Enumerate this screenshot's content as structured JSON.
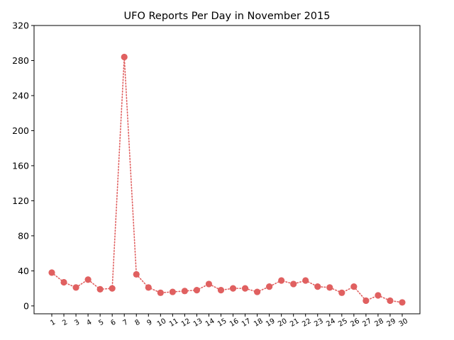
{
  "chart_data": {
    "type": "line",
    "title": "UFO Reports Per Day in November 2015",
    "xlabel": "",
    "ylabel": "",
    "categories": [
      "1",
      "2",
      "3",
      "4",
      "5",
      "6",
      "7",
      "8",
      "9",
      "10",
      "11",
      "12",
      "13",
      "14",
      "15",
      "16",
      "17",
      "18",
      "19",
      "20",
      "21",
      "22",
      "23",
      "24",
      "25",
      "26",
      "27",
      "28",
      "29",
      "30"
    ],
    "series": [
      {
        "values": [
          38,
          27,
          21,
          30,
          19,
          20,
          284,
          36,
          21,
          15,
          16,
          17,
          18,
          25,
          18,
          20,
          20,
          16,
          22,
          29,
          25,
          29,
          22,
          21,
          15,
          22,
          6,
          12,
          6,
          4
        ]
      }
    ],
    "ylim": [
      -9,
      320
    ],
    "yticks": [
      0,
      40,
      80,
      120,
      160,
      200,
      240,
      280,
      320
    ],
    "line_style": "dotted",
    "marker": "circle",
    "color": "#e06060",
    "grid": false,
    "legend": "none",
    "xtick_rotation": -30
  }
}
